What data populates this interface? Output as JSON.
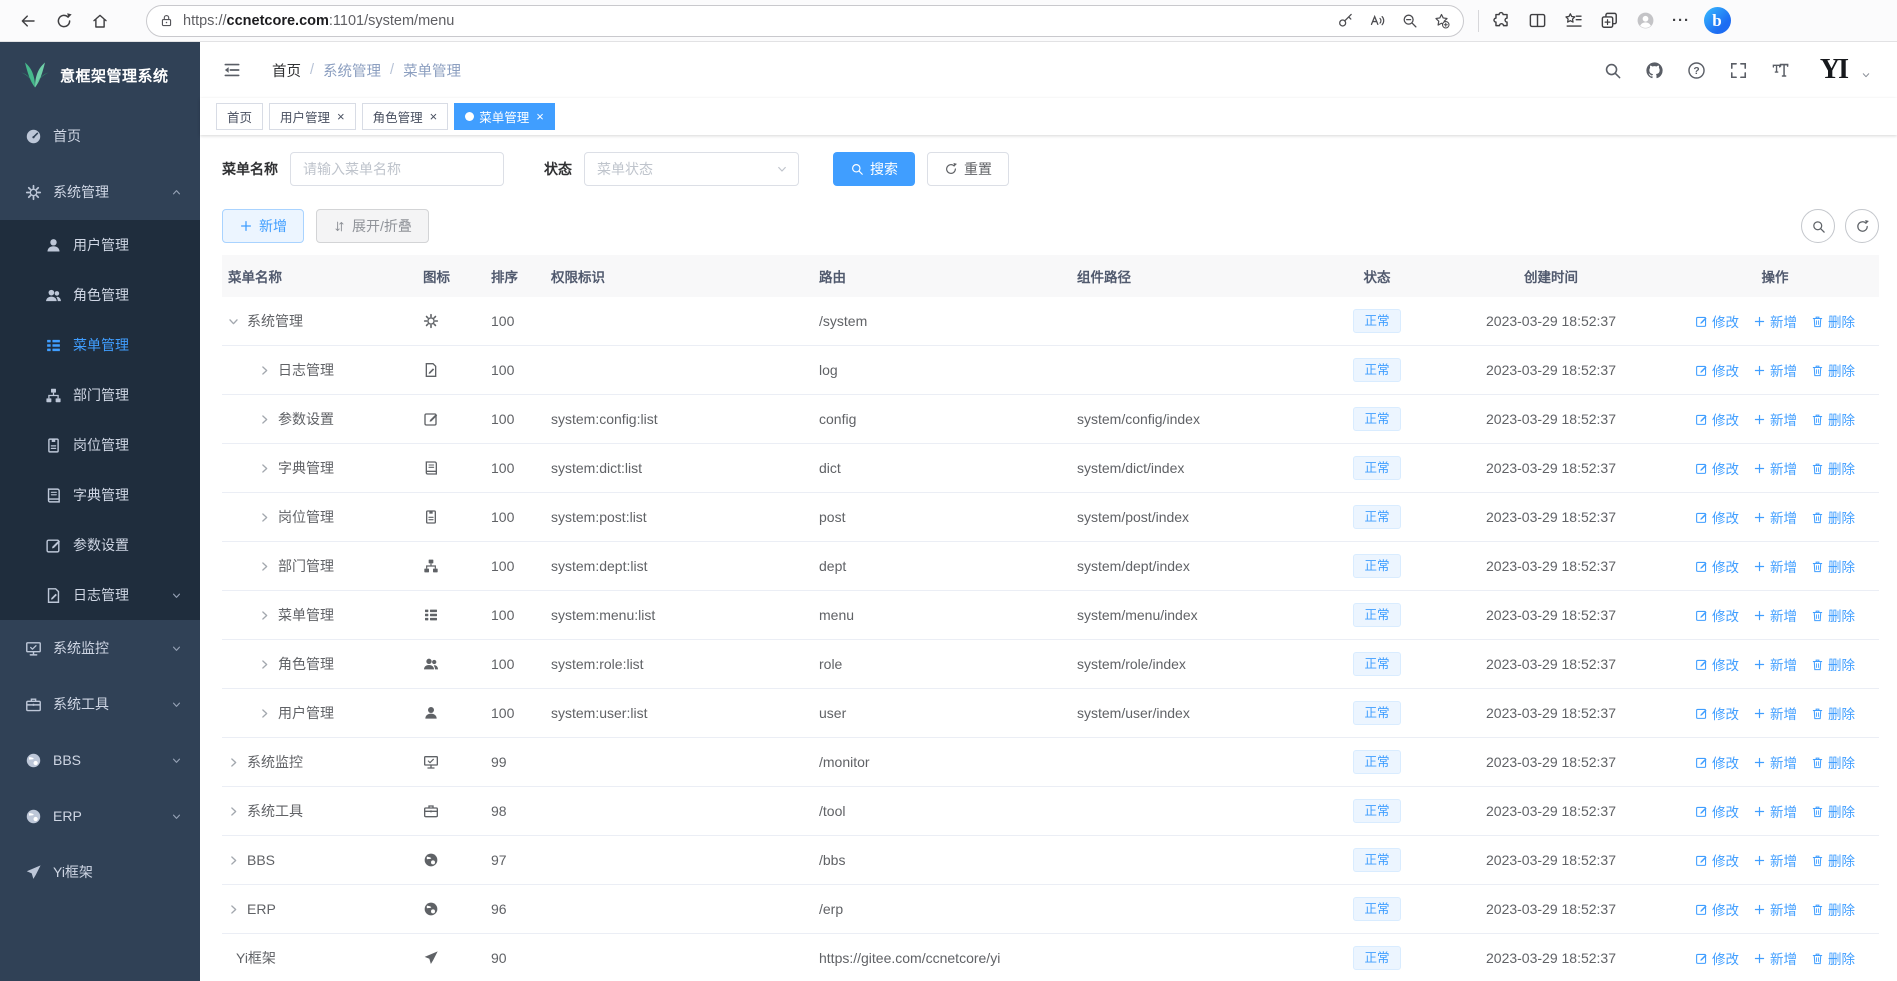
{
  "browser": {
    "url_scheme": "https://",
    "url_host": "ccnetcore.com",
    "url_rest": ":1101/system/menu",
    "left_icons": [
      "back-icon",
      "refresh-icon",
      "home-icon"
    ],
    "pill_icons": [
      "key-icon",
      "read-aloud-icon",
      "zoom-out-icon",
      "add-favorite-icon"
    ],
    "right_icons": [
      "extensions-icon",
      "split-screen-icon",
      "collections-icon",
      "copy-plus-icon",
      "avatar-icon",
      "more-icon",
      "bing-icon"
    ]
  },
  "sidebar": {
    "logo_title": "意框架管理系统",
    "items": [
      {
        "label": "首页",
        "icon": "dashboard-icon"
      },
      {
        "label": "系统管理",
        "icon": "gear-icon",
        "chevron": "up",
        "children": [
          {
            "label": "用户管理",
            "icon": "user-icon"
          },
          {
            "label": "角色管理",
            "icon": "role-icon"
          },
          {
            "label": "菜单管理",
            "icon": "menu-icon",
            "active": true
          },
          {
            "label": "部门管理",
            "icon": "dept-icon"
          },
          {
            "label": "岗位管理",
            "icon": "post-icon"
          },
          {
            "label": "字典管理",
            "icon": "dict-icon"
          },
          {
            "label": "参数设置",
            "icon": "edit-icon"
          },
          {
            "label": "日志管理",
            "icon": "log-icon",
            "chevron": "down"
          }
        ]
      },
      {
        "label": "系统监控",
        "icon": "monitor-icon",
        "chevron": "down"
      },
      {
        "label": "系统工具",
        "icon": "tool-icon",
        "chevron": "down"
      },
      {
        "label": "BBS",
        "icon": "globe-icon",
        "chevron": "down"
      },
      {
        "label": "ERP",
        "icon": "globe-icon",
        "chevron": "down"
      },
      {
        "label": "Yi框架",
        "icon": "send-icon"
      }
    ]
  },
  "nav": {
    "breadcrumb": [
      "首页",
      "系统管理",
      "菜单管理"
    ],
    "right_icons": [
      "search-icon",
      "github-icon",
      "question-icon",
      "fullscreen-icon",
      "font-size-icon"
    ],
    "logo_text": "YI"
  },
  "tabs": [
    {
      "label": "首页"
    },
    {
      "label": "用户管理",
      "closable": true
    },
    {
      "label": "角色管理",
      "closable": true
    },
    {
      "label": "菜单管理",
      "closable": true,
      "active": true
    }
  ],
  "filters": {
    "name_label": "菜单名称",
    "name_placeholder": "请输入菜单名称",
    "status_label": "状态",
    "status_placeholder": "菜单状态",
    "search_label": "搜索",
    "reset_label": "重置"
  },
  "toolbar": {
    "add_label": "新增",
    "expand_label": "展开/折叠"
  },
  "table": {
    "columns": [
      "菜单名称",
      "图标",
      "排序",
      "权限标识",
      "路由",
      "组件路径",
      "状态",
      "创建时间",
      "操作"
    ],
    "actions": [
      "修改",
      "新增",
      "删除"
    ],
    "rows": [
      {
        "name": "系统管理",
        "icon": "gear-icon",
        "arrow": "expanded",
        "level": 0,
        "order": "100",
        "perms": "",
        "path": "/system",
        "component": "",
        "status": "正常",
        "created": "2023-03-29 18:52:37"
      },
      {
        "name": "日志管理",
        "icon": "log-icon",
        "arrow": "collapsed",
        "level": 1,
        "order": "100",
        "perms": "",
        "path": "log",
        "component": "",
        "status": "正常",
        "created": "2023-03-29 18:52:37"
      },
      {
        "name": "参数设置",
        "icon": "edit-icon",
        "arrow": "collapsed",
        "level": 1,
        "order": "100",
        "perms": "system:config:list",
        "path": "config",
        "component": "system/config/index",
        "status": "正常",
        "created": "2023-03-29 18:52:37"
      },
      {
        "name": "字典管理",
        "icon": "dict-icon",
        "arrow": "collapsed",
        "level": 1,
        "order": "100",
        "perms": "system:dict:list",
        "path": "dict",
        "component": "system/dict/index",
        "status": "正常",
        "created": "2023-03-29 18:52:37"
      },
      {
        "name": "岗位管理",
        "icon": "post-icon",
        "arrow": "collapsed",
        "level": 1,
        "order": "100",
        "perms": "system:post:list",
        "path": "post",
        "component": "system/post/index",
        "status": "正常",
        "created": "2023-03-29 18:52:37"
      },
      {
        "name": "部门管理",
        "icon": "dept-icon",
        "arrow": "collapsed",
        "level": 1,
        "order": "100",
        "perms": "system:dept:list",
        "path": "dept",
        "component": "system/dept/index",
        "status": "正常",
        "created": "2023-03-29 18:52:37"
      },
      {
        "name": "菜单管理",
        "icon": "menu-icon",
        "arrow": "collapsed",
        "level": 1,
        "order": "100",
        "perms": "system:menu:list",
        "path": "menu",
        "component": "system/menu/index",
        "status": "正常",
        "created": "2023-03-29 18:52:37"
      },
      {
        "name": "角色管理",
        "icon": "role-icon",
        "arrow": "collapsed",
        "level": 1,
        "order": "100",
        "perms": "system:role:list",
        "path": "role",
        "component": "system/role/index",
        "status": "正常",
        "created": "2023-03-29 18:52:37"
      },
      {
        "name": "用户管理",
        "icon": "user-icon",
        "arrow": "collapsed",
        "level": 1,
        "order": "100",
        "perms": "system:user:list",
        "path": "user",
        "component": "system/user/index",
        "status": "正常",
        "created": "2023-03-29 18:52:37"
      },
      {
        "name": "系统监控",
        "icon": "monitor-icon",
        "arrow": "collapsed",
        "level": 0,
        "order": "99",
        "perms": "",
        "path": "/monitor",
        "component": "",
        "status": "正常",
        "created": "2023-03-29 18:52:37"
      },
      {
        "name": "系统工具",
        "icon": "tool-icon",
        "arrow": "collapsed",
        "level": 0,
        "order": "98",
        "perms": "",
        "path": "/tool",
        "component": "",
        "status": "正常",
        "created": "2023-03-29 18:52:37"
      },
      {
        "name": "BBS",
        "icon": "globe-icon",
        "arrow": "collapsed",
        "level": 0,
        "order": "97",
        "perms": "",
        "path": "/bbs",
        "component": "",
        "status": "正常",
        "created": "2023-03-29 18:52:37"
      },
      {
        "name": "ERP",
        "icon": "globe-icon",
        "arrow": "collapsed",
        "level": 0,
        "order": "96",
        "perms": "",
        "path": "/erp",
        "component": "",
        "status": "正常",
        "created": "2023-03-29 18:52:37"
      },
      {
        "name": "Yi框架",
        "icon": "send-icon",
        "arrow": "none",
        "level": 0,
        "order": "90",
        "perms": "",
        "path": "https://gitee.com/ccnetcore/yi",
        "component": "",
        "status": "正常",
        "created": "2023-03-29 18:52:37"
      }
    ]
  }
}
